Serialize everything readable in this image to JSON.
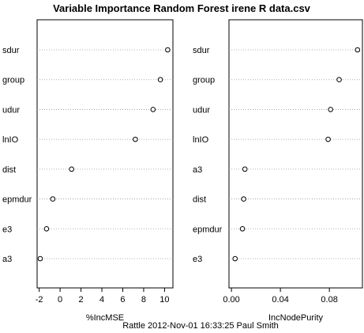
{
  "chart_data": {
    "title": "Variable Importance Random Forest irene R data.csv",
    "footer": "Rattle 2012-Nov-01 16:33:25 Paul Smith",
    "panels": [
      {
        "type": "dotchart",
        "xlabel": "%IncMSE",
        "xlim": [
          -2.2,
          10.8
        ],
        "xticks": [
          -2,
          0,
          2,
          4,
          6,
          8,
          10
        ],
        "xtick_labels": [
          "-2",
          "0",
          "2",
          "4",
          "6",
          "8",
          "10"
        ],
        "grid": "dotted",
        "categories": [
          "sdur",
          "group",
          "udur",
          "lnIO",
          "dist",
          "epmdur",
          "e3",
          "a3"
        ],
        "values": [
          10.3,
          9.6,
          8.9,
          7.2,
          1.1,
          -0.7,
          -1.3,
          -1.9
        ]
      },
      {
        "type": "dotchart",
        "xlabel": "IncNodePurity",
        "xlim": [
          -0.002,
          0.107
        ],
        "xticks": [
          0.0,
          0.04,
          0.08
        ],
        "xtick_labels": [
          "0.00",
          "0.04",
          "0.08"
        ],
        "grid": "dotted",
        "categories": [
          "sdur",
          "group",
          "udur",
          "lnIO",
          "a3",
          "dist",
          "epmdur",
          "e3"
        ],
        "values": [
          0.103,
          0.088,
          0.081,
          0.079,
          0.011,
          0.01,
          0.009,
          0.003
        ]
      }
    ]
  }
}
